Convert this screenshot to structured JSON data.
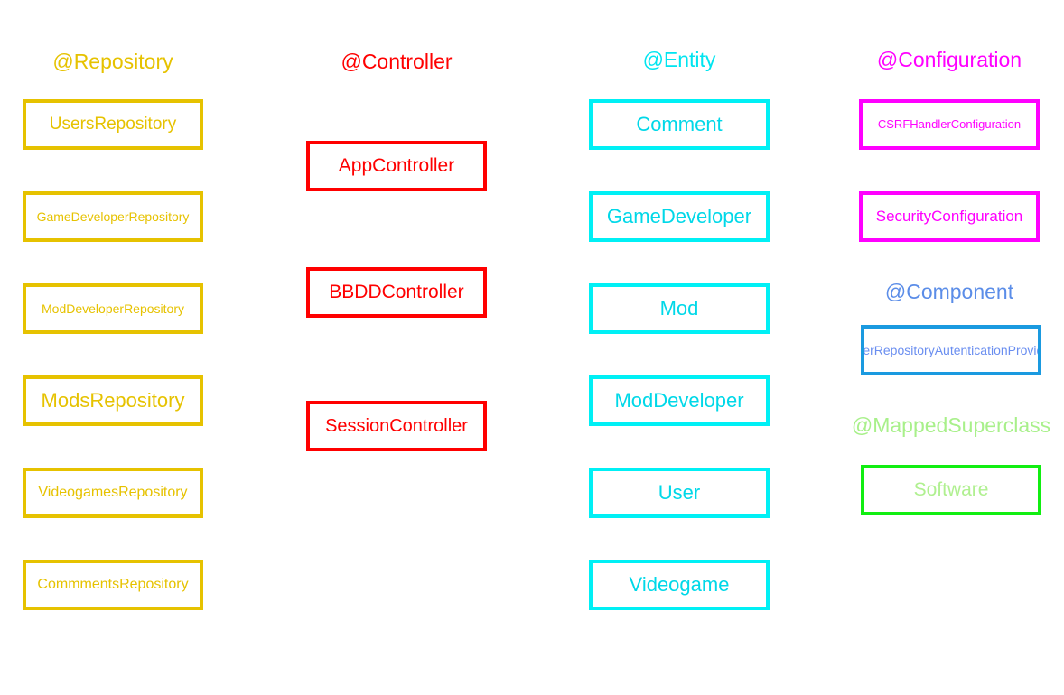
{
  "repository": {
    "heading": "@Repository",
    "items": [
      "UsersRepository",
      "GameDeveloperRepository",
      "ModDeveloperRepository",
      "ModsRepository",
      "VideogamesRepository",
      "CommmentsRepository"
    ]
  },
  "controller": {
    "heading": "@Controller",
    "items": [
      "AppController",
      "BBDDController",
      "SessionController"
    ]
  },
  "entity": {
    "heading": "@Entity",
    "items": [
      "Comment",
      "GameDeveloper",
      "Mod",
      "ModDeveloper",
      "User",
      "Videogame"
    ]
  },
  "configuration": {
    "heading": "@Configuration",
    "items": [
      "CSRFHandlerConfiguration",
      "SecurityConfiguration"
    ]
  },
  "component": {
    "heading": "@Component",
    "items": [
      "UserRepositoryAutenticationProvider"
    ]
  },
  "mapped_superclass": {
    "heading": "@MappedSuperclass",
    "items": [
      "Software"
    ]
  },
  "colors": {
    "repository": "#e6c200",
    "controller": "#ff0000",
    "entity": "#00f0f5",
    "configuration": "#ff00ff",
    "component": "#1a9ae0",
    "mapped_superclass": "#11ee11"
  }
}
